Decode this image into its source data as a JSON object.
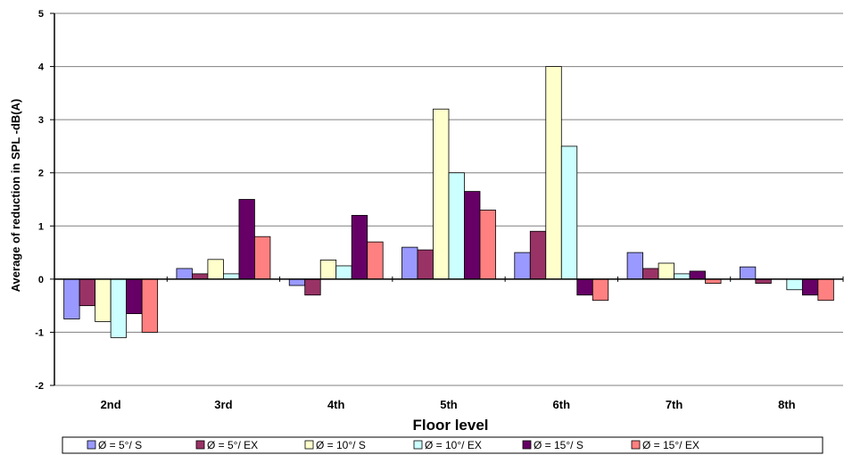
{
  "chart_data": {
    "type": "bar",
    "title": "",
    "xlabel": "Floor level",
    "ylabel": "Average of reduction in SPL -dB(A)",
    "ylim": [
      -2,
      5
    ],
    "yticks": [
      -2,
      -1,
      0,
      1,
      2,
      3,
      4,
      5
    ],
    "grid": true,
    "legend_position": "bottom",
    "categories": [
      "2nd",
      "3rd",
      "4th",
      "5th",
      "6th",
      "7th",
      "8th"
    ],
    "series": [
      {
        "name": "Ø = 5°/ S",
        "color": "#9999ff",
        "values": [
          -0.75,
          0.2,
          -0.12,
          0.6,
          0.5,
          0.5,
          0.23
        ]
      },
      {
        "name": "Ø = 5°/ EX",
        "color": "#993366",
        "values": [
          -0.5,
          0.1,
          -0.3,
          0.55,
          0.9,
          0.2,
          -0.08
        ]
      },
      {
        "name": "Ø = 10°/ S",
        "color": "#ffffcc",
        "values": [
          -0.8,
          0.37,
          0.36,
          3.2,
          4.0,
          0.3,
          0.0
        ]
      },
      {
        "name": "Ø = 10°/ EX",
        "color": "#ccffff",
        "values": [
          -1.1,
          0.1,
          0.25,
          2.0,
          2.5,
          0.1,
          -0.2
        ]
      },
      {
        "name": "Ø = 15°/ S",
        "color": "#660066",
        "values": [
          -0.65,
          1.5,
          1.2,
          1.65,
          -0.3,
          0.15,
          -0.3
        ]
      },
      {
        "name": "Ø = 15°/ EX",
        "color": "#ff8080",
        "values": [
          -1.0,
          0.8,
          0.7,
          1.3,
          -0.4,
          -0.08,
          -0.4
        ]
      }
    ]
  }
}
